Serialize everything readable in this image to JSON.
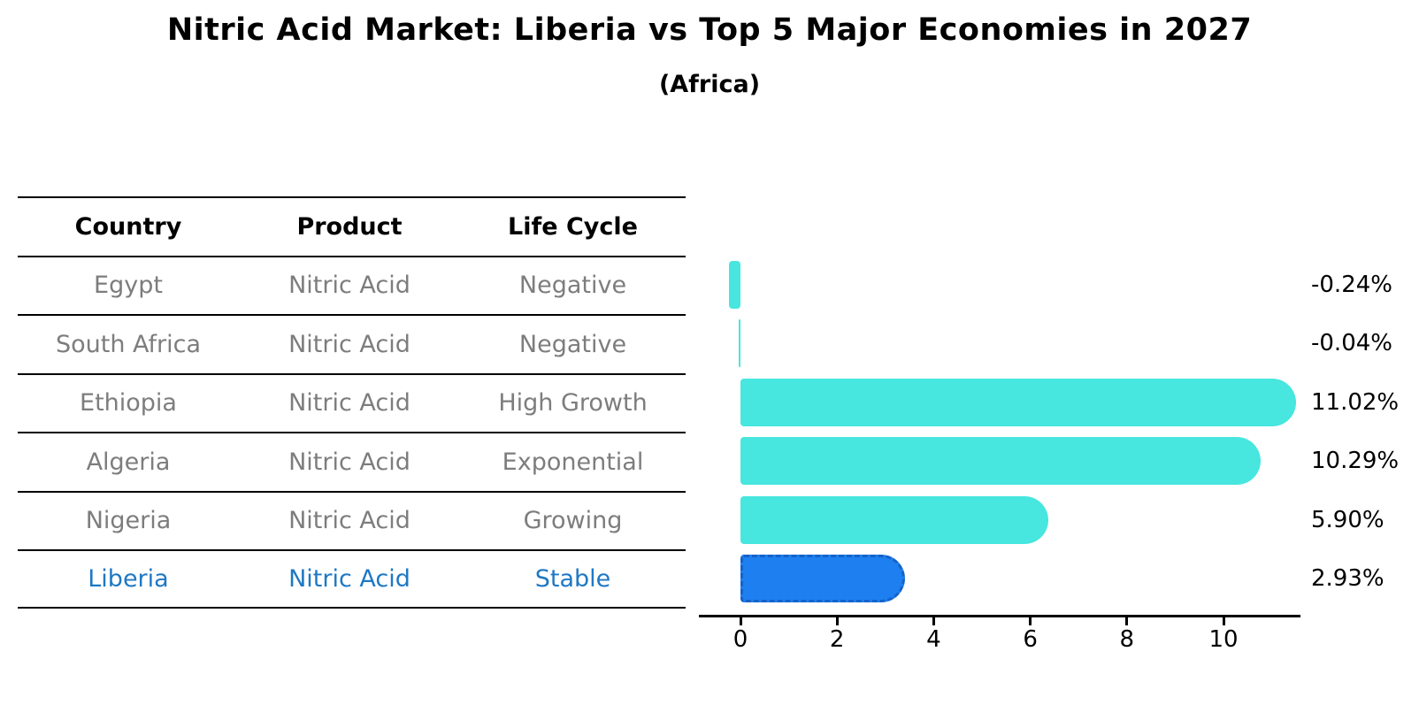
{
  "chart_data": {
    "type": "bar",
    "orientation": "horizontal",
    "title": "Nitric Acid Market: Liberia vs Top 5 Major Economies in 2027",
    "subtitle": "(Africa)",
    "categories": [
      "Egypt",
      "South Africa",
      "Ethiopia",
      "Algeria",
      "Nigeria",
      "Liberia"
    ],
    "values": [
      -0.24,
      -0.04,
      11.02,
      10.29,
      5.9,
      2.93
    ],
    "value_labels": [
      "-0.24%",
      "-0.04%",
      "11.02%",
      "10.29%",
      "5.90%",
      "2.93%"
    ],
    "x_ticks": [
      0,
      2,
      4,
      6,
      8,
      10
    ],
    "xlim": [
      -0.85,
      11.6
    ],
    "grid": false,
    "legend": false,
    "highlight_category": "Liberia",
    "highlight_index": 5,
    "colors": {
      "bar_default": "#47e6df",
      "bar_highlight": "#1e80f0",
      "bar_highlight_border": "#1562c8",
      "highlight_text": "#1e78c4",
      "table_text": "#7d7d7d",
      "text": "#000000"
    }
  },
  "table": {
    "headers": [
      "Country",
      "Product",
      "Life Cycle"
    ],
    "rows": [
      {
        "country": "Egypt",
        "product": "Nitric Acid",
        "life_cycle": "Negative",
        "highlighted": false
      },
      {
        "country": "South Africa",
        "product": "Nitric Acid",
        "life_cycle": "Negative",
        "highlighted": false
      },
      {
        "country": "Ethiopia",
        "product": "Nitric Acid",
        "life_cycle": "High Growth",
        "highlighted": false
      },
      {
        "country": "Algeria",
        "product": "Nitric Acid",
        "life_cycle": "Exponential",
        "highlighted": false
      },
      {
        "country": "Nigeria",
        "product": "Nitric Acid",
        "life_cycle": "Growing",
        "highlighted": false
      },
      {
        "country": "Liberia",
        "product": "Nitric Acid",
        "life_cycle": "Stable",
        "highlighted": true
      }
    ]
  }
}
